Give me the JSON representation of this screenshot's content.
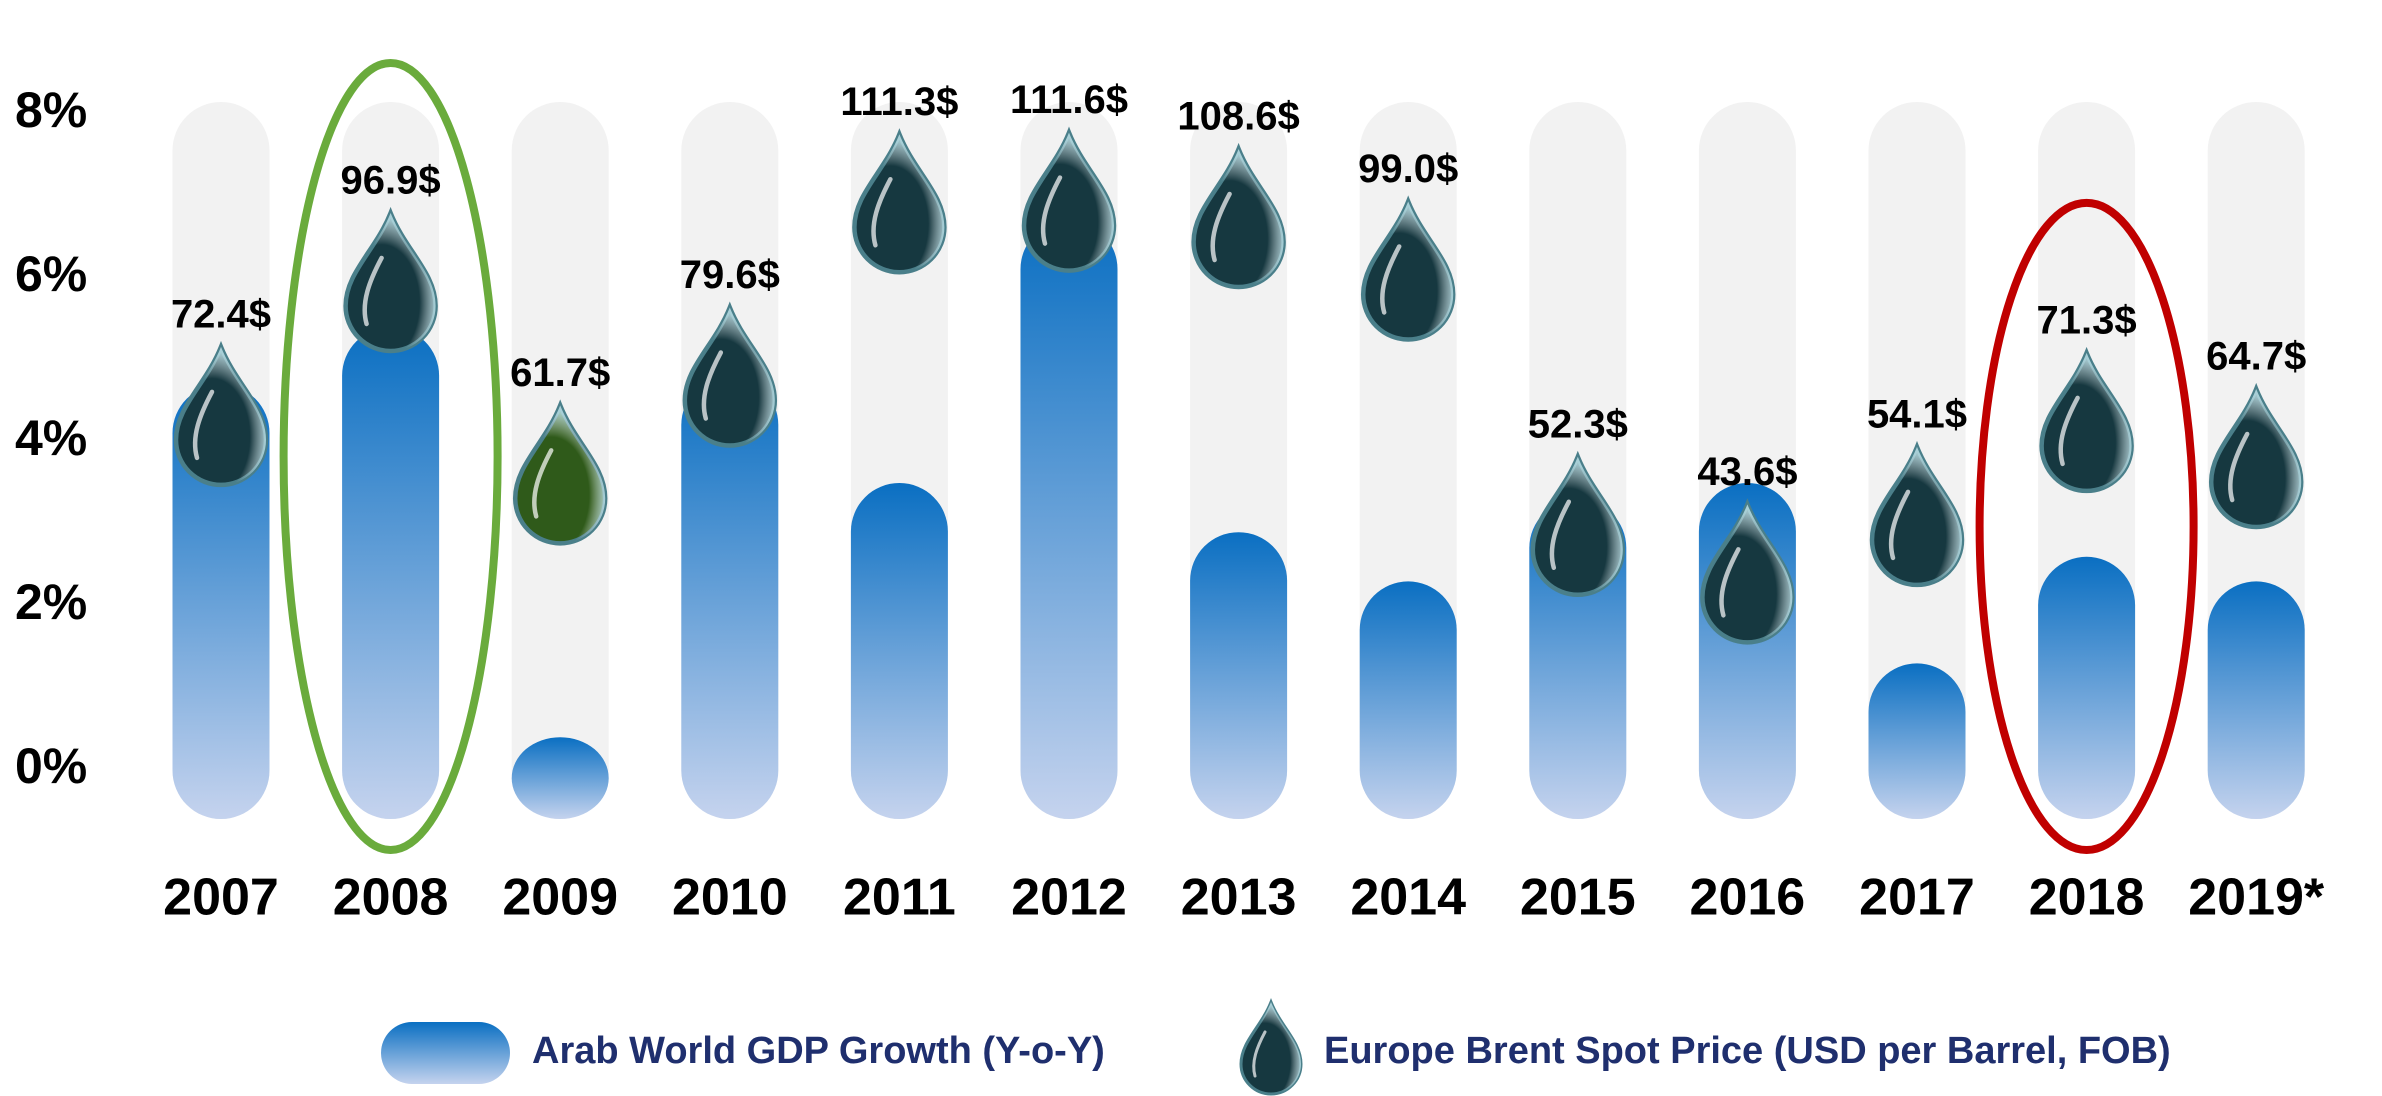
{
  "chart_data": {
    "type": "bar",
    "categories": [
      "2007",
      "2008",
      "2009",
      "2010",
      "2011",
      "2012",
      "2013",
      "2014",
      "2015",
      "2016",
      "2017",
      "2018",
      "2019*"
    ],
    "series": [
      {
        "name": "Arab World GDP Growth (Y-o-Y)",
        "color": "#0a6fc2",
        "values": [
          4.7,
          5.4,
          0.4,
          4.8,
          3.5,
          6.7,
          2.9,
          2.3,
          3.3,
          3.5,
          1.3,
          2.6,
          2.3
        ]
      },
      {
        "name": "Europe Brent Spot Price (USD per Barrel, FOB)",
        "type": "drop",
        "axis": "y2",
        "color": "#163840",
        "values": [
          72.4,
          96.9,
          61.7,
          79.6,
          111.3,
          111.6,
          108.6,
          99.0,
          52.3,
          43.6,
          54.1,
          71.3,
          64.7
        ],
        "value_labels": [
          "72.4$",
          "96.9$",
          "61.7$",
          "79.6$",
          "111.3$",
          "111.6$",
          "108.6$",
          "99.0$",
          "52.3$",
          "43.6$",
          "54.1$",
          "71.3$",
          "64.7$"
        ],
        "point_colors": [
          "#163840",
          "#163840",
          "#2f5a1a",
          "#163840",
          "#163840",
          "#163840",
          "#163840",
          "#163840",
          "#163840",
          "#163840",
          "#163840",
          "#163840",
          "#163840"
        ]
      }
    ],
    "ylim": [
      0,
      8
    ],
    "yticks": [
      {
        "value": 0,
        "label": "0%"
      },
      {
        "value": 2,
        "label": "2%"
      },
      {
        "value": 4,
        "label": "4%"
      },
      {
        "value": 6,
        "label": "6%"
      },
      {
        "value": 8,
        "label": "8%"
      }
    ],
    "y2lim": [
      -5,
      115
    ],
    "track_color": "#f2f2f2",
    "highlights": [
      {
        "index": 1,
        "color": "#6aab3c"
      },
      {
        "index": 11,
        "color": "#c00000"
      }
    ]
  }
}
